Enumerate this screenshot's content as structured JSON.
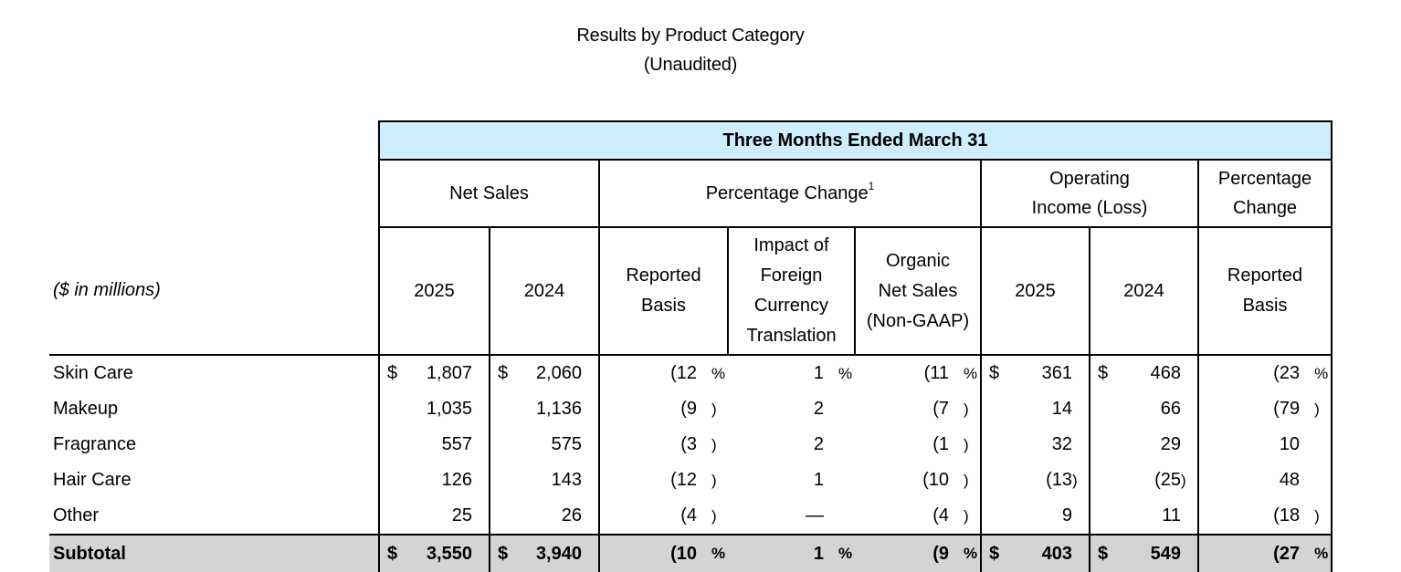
{
  "title": "Results by Product Category",
  "subtitle": "(Unaudited)",
  "table": {
    "period": "Three Months Ended March 31",
    "groups": {
      "net_sales": "Net Sales",
      "pct_change": "Percentage Change",
      "pct_change_footnote": "1",
      "op_income_l1": "Operating",
      "op_income_l2": "Income (Loss)",
      "pct_change2_l1": "Percentage",
      "pct_change2_l2": "Change"
    },
    "units_label": "($ in millions)",
    "sub_headers": {
      "ns_2025": "2025",
      "ns_2024": "2024",
      "reported_l1": "Reported",
      "reported_l2": "Basis",
      "fx_l1": "Impact of",
      "fx_l2": "Foreign",
      "fx_l3": "Currency",
      "fx_l4": "Translation",
      "organic_l1": "Organic",
      "organic_l2": "Net Sales",
      "organic_l3": "(Non-GAAP)",
      "oi_2025": "2025",
      "oi_2024": "2024",
      "rep2_l1": "Reported",
      "rep2_l2": "Basis"
    },
    "currency_symbol": "$",
    "percent_symbol": "%",
    "rows": [
      {
        "label": "Skin Care",
        "ns25": "1,807",
        "ns24": "2,060",
        "rep": "(12",
        "fx": "1",
        "org": "(11",
        "oi25": "361",
        "oi24": "468",
        "oipct": "(23"
      },
      {
        "label": "Makeup",
        "ns25": "1,035",
        "ns24": "1,136",
        "rep": "(9",
        "fx": "2",
        "org": "(7",
        "oi25": "14",
        "oi24": "66",
        "oipct": "(79"
      },
      {
        "label": "Fragrance",
        "ns25": "557",
        "ns24": "575",
        "rep": "(3",
        "fx": "2",
        "org": "(1",
        "oi25": "32",
        "oi24": "29",
        "oipct": "10"
      },
      {
        "label": "Hair Care",
        "ns25": "126",
        "ns24": "143",
        "rep": "(12",
        "fx": "1",
        "org": "(10",
        "oi25": "(13",
        "oi24": "(25",
        "oipct": "48"
      },
      {
        "label": "Other",
        "ns25": "25",
        "ns24": "26",
        "rep": "(4",
        "fx": "—",
        "org": "(4",
        "oi25": "9",
        "oi24": "11",
        "oipct": "(18"
      }
    ],
    "subtotal": {
      "label": "Subtotal",
      "ns25": "3,550",
      "ns24": "3,940",
      "rep": "(10",
      "fx": "1",
      "org": "(9",
      "oi25": "403",
      "oi24": "549",
      "oipct": "(27"
    }
  }
}
